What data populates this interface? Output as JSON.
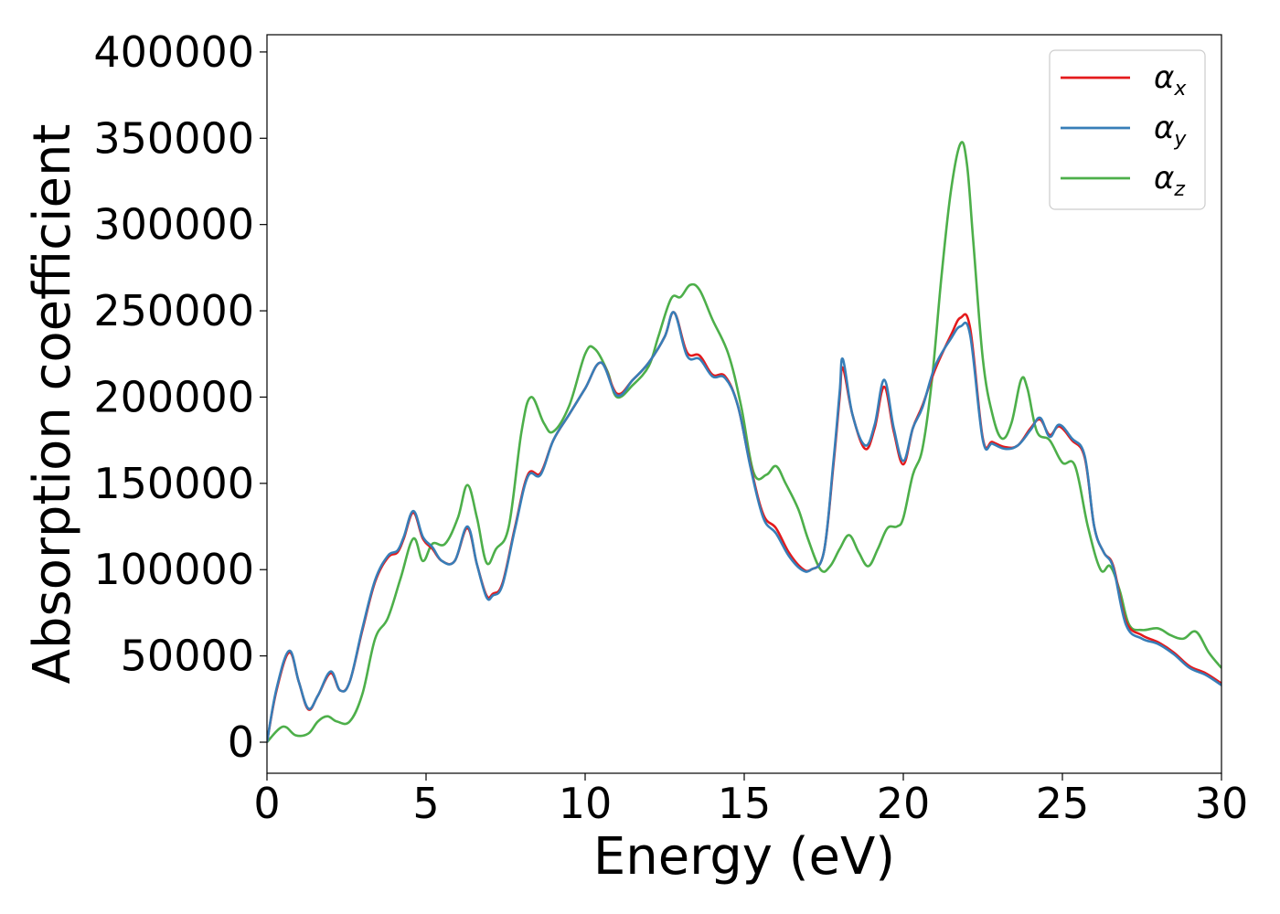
{
  "chart_data": {
    "type": "line",
    "xlabel": "Energy (eV)",
    "ylabel": "Absorption coefficient",
    "xlim": [
      0,
      30
    ],
    "ylim": [
      -18000,
      410000
    ],
    "xticks": [
      0,
      5,
      10,
      15,
      20,
      25,
      30
    ],
    "xtick_labels": [
      "0",
      "5",
      "10",
      "15",
      "20",
      "25",
      "30"
    ],
    "yticks": [
      0,
      50000,
      100000,
      150000,
      200000,
      250000,
      300000,
      350000,
      400000
    ],
    "ytick_labels": [
      "0",
      "50000",
      "100000",
      "150000",
      "200000",
      "250000",
      "300000",
      "350000",
      "400000"
    ],
    "grid": false,
    "legend_position": "top-right",
    "series": [
      {
        "name": "α",
        "subscript": "x",
        "color": "#e41a1c",
        "x": [
          0,
          0.3,
          0.7,
          1.0,
          1.3,
          1.6,
          2.0,
          2.3,
          2.6,
          3.0,
          3.4,
          3.8,
          4.1,
          4.3,
          4.6,
          4.9,
          5.2,
          5.5,
          5.9,
          6.3,
          6.6,
          6.9,
          7.1,
          7.4,
          7.8,
          8.2,
          8.6,
          9.0,
          9.5,
          10.0,
          10.5,
          11.0,
          11.5,
          12.0,
          12.5,
          12.8,
          13.2,
          13.6,
          14.0,
          14.4,
          14.8,
          15.2,
          15.6,
          16.0,
          16.4,
          16.8,
          17.1,
          17.5,
          17.8,
          18.0,
          18.1,
          18.4,
          18.8,
          19.1,
          19.4,
          19.7,
          20.0,
          20.3,
          20.6,
          21.0,
          21.5,
          21.8,
          22.1,
          22.5,
          22.8,
          23.2,
          23.6,
          24.0,
          24.3,
          24.6,
          24.9,
          25.3,
          25.7,
          26.0,
          26.3,
          26.6,
          27.0,
          27.5,
          28.0,
          28.5,
          29.0,
          29.5,
          30.0
        ],
        "y": [
          0,
          30000,
          52000,
          35000,
          19000,
          27000,
          40000,
          30000,
          35000,
          65000,
          93000,
          107000,
          110000,
          118000,
          133000,
          118000,
          112000,
          105000,
          105000,
          124000,
          103000,
          85000,
          86000,
          92000,
          125000,
          155000,
          156000,
          175000,
          190000,
          205000,
          220000,
          202000,
          210000,
          220000,
          235000,
          249000,
          226000,
          224000,
          213000,
          212000,
          195000,
          160000,
          132000,
          124000,
          110000,
          101000,
          100000,
          110000,
          160000,
          200000,
          217000,
          190000,
          170000,
          182000,
          206000,
          180000,
          161000,
          182000,
          195000,
          216000,
          236000,
          246000,
          240000,
          176000,
          174000,
          171000,
          172000,
          182000,
          187000,
          178000,
          183000,
          175000,
          165000,
          125000,
          110000,
          102000,
          70000,
          62000,
          58000,
          52000,
          44000,
          40000,
          34000
        ]
      },
      {
        "name": "α",
        "subscript": "y",
        "color": "#377eb8",
        "x": [
          0,
          0.3,
          0.7,
          1.0,
          1.3,
          1.6,
          2.0,
          2.3,
          2.6,
          3.0,
          3.4,
          3.8,
          4.1,
          4.3,
          4.6,
          4.9,
          5.2,
          5.5,
          5.9,
          6.3,
          6.6,
          6.9,
          7.1,
          7.4,
          7.8,
          8.2,
          8.6,
          9.0,
          9.5,
          10.0,
          10.5,
          11.0,
          11.5,
          12.0,
          12.5,
          12.8,
          13.2,
          13.6,
          14.0,
          14.4,
          14.8,
          15.2,
          15.6,
          16.0,
          16.4,
          16.8,
          17.1,
          17.5,
          17.8,
          18.0,
          18.1,
          18.4,
          18.8,
          19.1,
          19.4,
          19.7,
          20.0,
          20.3,
          20.6,
          21.0,
          21.5,
          21.8,
          22.1,
          22.5,
          22.8,
          23.2,
          23.6,
          24.0,
          24.3,
          24.6,
          24.9,
          25.3,
          25.7,
          26.0,
          26.3,
          26.6,
          27.0,
          27.5,
          28.0,
          28.5,
          29.0,
          29.5,
          30.0
        ],
        "y": [
          0,
          31000,
          53000,
          35000,
          19500,
          27000,
          41000,
          30000,
          35000,
          66000,
          94000,
          108000,
          111000,
          119000,
          134000,
          119000,
          113000,
          105000,
          105000,
          125000,
          103000,
          84000,
          85000,
          91000,
          124000,
          154000,
          155000,
          175000,
          190000,
          205000,
          220000,
          201000,
          210000,
          220000,
          235000,
          249000,
          224000,
          222000,
          212000,
          211000,
          195000,
          159000,
          130000,
          121000,
          108000,
          100000,
          100000,
          110000,
          162000,
          203000,
          222000,
          190000,
          172000,
          184000,
          210000,
          182000,
          163000,
          182000,
          194000,
          218000,
          234000,
          241000,
          236000,
          175000,
          173000,
          170000,
          172000,
          181000,
          188000,
          177000,
          184000,
          176000,
          166000,
          125000,
          110000,
          101000,
          68000,
          60000,
          57000,
          51000,
          43000,
          39000,
          33000
        ]
      },
      {
        "name": "α",
        "subscript": "z",
        "color": "#4daf4a",
        "x": [
          0,
          0.5,
          0.9,
          1.3,
          1.6,
          1.9,
          2.2,
          2.6,
          3.0,
          3.4,
          3.8,
          4.2,
          4.6,
          4.9,
          5.2,
          5.6,
          6.0,
          6.3,
          6.6,
          6.9,
          7.2,
          7.6,
          8.0,
          8.3,
          8.7,
          9.0,
          9.5,
          10.0,
          10.3,
          10.7,
          11.0,
          11.5,
          12.0,
          12.3,
          12.7,
          13.0,
          13.3,
          13.6,
          14.0,
          14.5,
          14.9,
          15.3,
          15.7,
          16.0,
          16.3,
          16.7,
          17.0,
          17.4,
          17.7,
          18.0,
          18.3,
          18.6,
          18.9,
          19.2,
          19.5,
          19.8,
          20.0,
          20.3,
          20.6,
          20.9,
          21.2,
          21.5,
          21.8,
          22.0,
          22.2,
          22.5,
          22.8,
          23.1,
          23.4,
          23.7,
          23.9,
          24.2,
          24.6,
          25.0,
          25.4,
          25.8,
          26.2,
          26.5,
          26.8,
          27.1,
          27.5,
          28.0,
          28.4,
          28.8,
          29.2,
          29.6,
          30.0
        ],
        "y": [
          0,
          9000,
          4000,
          5000,
          12000,
          15000,
          12000,
          12000,
          28000,
          60000,
          72000,
          95000,
          118000,
          105000,
          115000,
          115000,
          130000,
          149000,
          130000,
          104000,
          112000,
          125000,
          180000,
          200000,
          185000,
          180000,
          195000,
          225000,
          228000,
          215000,
          200000,
          207000,
          218000,
          235000,
          257000,
          258000,
          265000,
          262000,
          245000,
          225000,
          195000,
          156000,
          155000,
          160000,
          150000,
          135000,
          118000,
          100000,
          102000,
          112000,
          120000,
          110000,
          102000,
          112000,
          124000,
          125000,
          130000,
          155000,
          170000,
          210000,
          270000,
          320000,
          347000,
          335000,
          290000,
          222000,
          190000,
          176000,
          185000,
          210000,
          205000,
          180000,
          175000,
          162000,
          160000,
          125000,
          100000,
          102000,
          88000,
          68000,
          65000,
          66000,
          62000,
          60000,
          64000,
          52000,
          43000
        ]
      }
    ]
  }
}
